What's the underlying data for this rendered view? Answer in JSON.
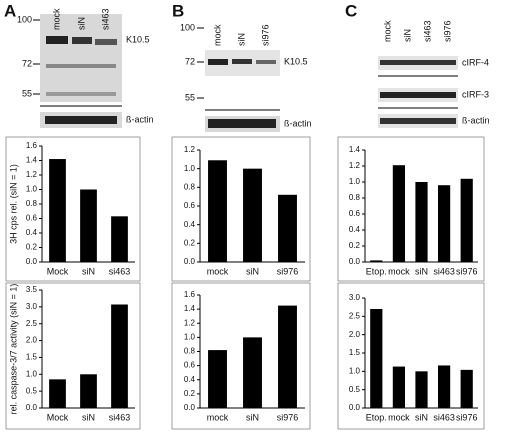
{
  "blots": [
    {
      "letter": "A",
      "lanes": [
        "mock",
        "siN",
        "si463"
      ],
      "markers": [
        100,
        72,
        55
      ],
      "proteins": [
        "K10.5",
        "ß-actin"
      ]
    },
    {
      "letter": "B",
      "lanes": [
        "mock",
        "siN",
        "si976"
      ],
      "markers": [
        100,
        72,
        55
      ],
      "proteins": [
        "K10.5",
        "ß-actin"
      ]
    },
    {
      "letter": "C",
      "lanes": [
        "mock",
        "siN",
        "si463",
        "si976"
      ],
      "proteins": [
        "cIRF-4",
        "cIRF-3",
        "ß-actin"
      ]
    }
  ],
  "chart_data": [
    {
      "type": "bar",
      "ylabel": "3H cps rel. (siN = 1)",
      "categories": [
        "Mock",
        "siN",
        "si463"
      ],
      "values": [
        1.42,
        1.0,
        0.63
      ],
      "color": "#000000",
      "ylim": [
        0,
        1.6
      ],
      "yticks": [
        {
          "value": 0,
          "label": "0.0"
        },
        {
          "value": 0.2,
          "label": "0.2"
        },
        {
          "value": 0.4,
          "label": "0.4"
        },
        {
          "value": 0.6,
          "label": "0.6"
        },
        {
          "value": 0.8,
          "label": "0.8"
        },
        {
          "value": 1.0,
          "label": "1.0"
        },
        {
          "value": 1.2,
          "label": "1.2"
        },
        {
          "value": 1.4,
          "label": "1.4"
        },
        {
          "value": 1.6,
          "label": "1.6"
        }
      ]
    },
    {
      "type": "bar",
      "ylabel": "rel. caspase-3/7 activity (siN = 1)",
      "categories": [
        "Mock",
        "siN",
        "si463"
      ],
      "values": [
        0.85,
        1.0,
        3.07
      ],
      "color": "#000000",
      "ylim": [
        0,
        3.5
      ],
      "yticks": [
        {
          "value": 0,
          "label": "0.0"
        },
        {
          "value": 0.5,
          "label": "0.5"
        },
        {
          "value": 1.0,
          "label": "1.0"
        },
        {
          "value": 1.5,
          "label": "1.5"
        },
        {
          "value": 2.0,
          "label": "2.0"
        },
        {
          "value": 2.5,
          "label": "2.5"
        },
        {
          "value": 3.0,
          "label": "3.0"
        },
        {
          "value": 3.5,
          "label": "3.5"
        }
      ]
    },
    {
      "type": "bar",
      "categories": [
        "mock",
        "siN",
        "si976"
      ],
      "values": [
        1.09,
        1.0,
        0.72
      ],
      "color": "#000000",
      "ylim": [
        0,
        1.2
      ],
      "yticks": [
        {
          "value": 0,
          "label": "0.0"
        },
        {
          "value": 0.2,
          "label": "0.2"
        },
        {
          "value": 0.4,
          "label": "0.4"
        },
        {
          "value": 0.6,
          "label": "0.6"
        },
        {
          "value": 0.8,
          "label": "0.8"
        },
        {
          "value": 1.0,
          "label": "1.0"
        },
        {
          "value": 1.2,
          "label": "1.2"
        }
      ]
    },
    {
      "type": "bar",
      "categories": [
        "mock",
        "siN",
        "si976"
      ],
      "values": [
        0.82,
        1.0,
        1.45
      ],
      "color": "#000000",
      "ylim": [
        0,
        1.6
      ],
      "yticks": [
        {
          "value": 0,
          "label": "0.0"
        },
        {
          "value": 0.2,
          "label": "0.2"
        },
        {
          "value": 0.4,
          "label": "0.4"
        },
        {
          "value": 0.6,
          "label": "0.6"
        },
        {
          "value": 0.8,
          "label": "0.8"
        },
        {
          "value": 1.0,
          "label": "1.0"
        },
        {
          "value": 1.2,
          "label": "1.2"
        },
        {
          "value": 1.4,
          "label": "1.4"
        },
        {
          "value": 1.6,
          "label": "1.6"
        }
      ]
    },
    {
      "type": "bar",
      "categories": [
        "Etop.",
        "mock",
        "siN",
        "si463",
        "si976"
      ],
      "values": [
        0.02,
        1.21,
        1.0,
        0.96,
        1.04
      ],
      "color": "#000000",
      "ylim": [
        0,
        1.4
      ],
      "yticks": [
        {
          "value": 0,
          "label": "0.0"
        },
        {
          "value": 0.2,
          "label": "0.2"
        },
        {
          "value": 0.4,
          "label": "0.4"
        },
        {
          "value": 0.6,
          "label": "0.6"
        },
        {
          "value": 0.8,
          "label": "0.8"
        },
        {
          "value": 1.0,
          "label": "1.0"
        },
        {
          "value": 1.2,
          "label": "1.2"
        },
        {
          "value": 1.4,
          "label": "1.4"
        }
      ]
    },
    {
      "type": "bar",
      "categories": [
        "Etop.",
        "mock",
        "siN",
        "si463",
        "si976"
      ],
      "values": [
        2.7,
        1.13,
        1.0,
        1.16,
        1.04
      ],
      "color": "#000000",
      "ylim": [
        0,
        3.0
      ],
      "yticks": [
        {
          "value": 0,
          "label": "0.0"
        },
        {
          "value": 0.5,
          "label": "0.5"
        },
        {
          "value": 1.0,
          "label": "1.0"
        },
        {
          "value": 1.5,
          "label": "1.5"
        },
        {
          "value": 2.0,
          "label": "2.0"
        },
        {
          "value": 2.5,
          "label": "2.5"
        },
        {
          "value": 3.0,
          "label": "3.0"
        }
      ]
    }
  ]
}
